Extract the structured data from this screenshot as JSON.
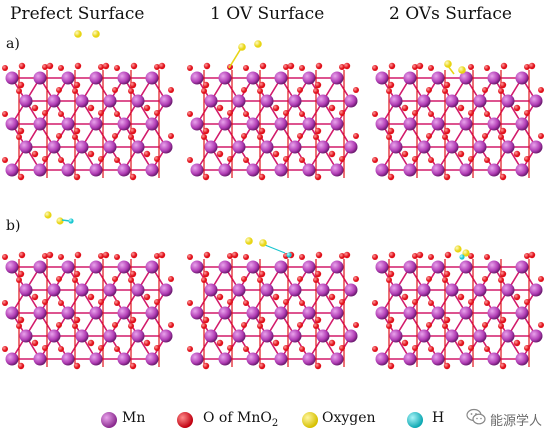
{
  "titles": {
    "col1": "Prefect  Surface",
    "col2": "1 OV Surface",
    "col3": "2 OVs Surface"
  },
  "rows": {
    "a": "a)",
    "b": "b)"
  },
  "legend": {
    "mn": "Mn",
    "o_prefix": "O of MnO",
    "o_sub": "2",
    "oxygen": "Oxygen",
    "h": "H"
  },
  "colors": {
    "mn": "#b03cb4",
    "mn_highlight": "#e9a3ec",
    "o": "#e0101a",
    "oxygen": "#e8d516",
    "h": "#19c6cf",
    "bond": "#d21a6a"
  },
  "watermark": {
    "text": "能源学人",
    "icon": "wechat-icon"
  }
}
